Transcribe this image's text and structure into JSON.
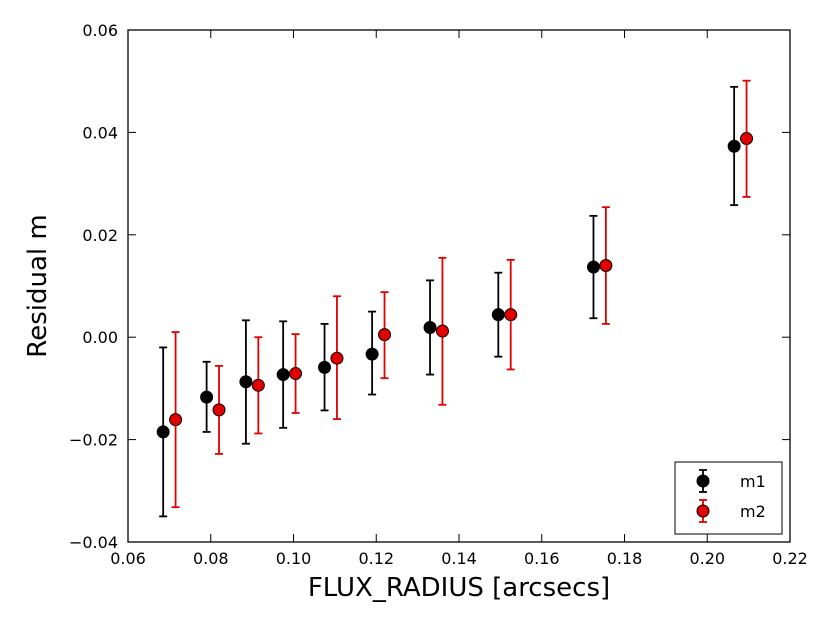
{
  "chart_data": {
    "type": "scatter",
    "xlabel": "FLUX_RADIUS [arcsecs]",
    "ylabel": "Residual m",
    "xlim": [
      0.06,
      0.22
    ],
    "ylim": [
      -0.04,
      0.06
    ],
    "xticks": [
      0.06,
      0.08,
      0.1,
      0.12,
      0.14,
      0.16,
      0.18,
      0.2,
      0.22
    ],
    "xtick_labels": [
      "0.06",
      "0.08",
      "0.10",
      "0.12",
      "0.14",
      "0.16",
      "0.18",
      "0.20",
      "0.22"
    ],
    "yticks": [
      -0.04,
      -0.02,
      0.0,
      0.02,
      0.04,
      0.06
    ],
    "ytick_labels": [
      "−0.04",
      "−0.02",
      "0.00",
      "0.02",
      "0.04",
      "0.06"
    ],
    "grid": false,
    "legend_position": "bottom-right",
    "series": [
      {
        "name": "m1",
        "color": "#000000",
        "points": [
          {
            "x": 0.0685,
            "y": -0.0185,
            "lo": -0.035,
            "hi": -0.002
          },
          {
            "x": 0.079,
            "y": -0.0117,
            "lo": -0.0185,
            "hi": -0.0048
          },
          {
            "x": 0.0885,
            "y": -0.0087,
            "lo": -0.0208,
            "hi": 0.0033
          },
          {
            "x": 0.0975,
            "y": -0.0073,
            "lo": -0.0177,
            "hi": 0.0031
          },
          {
            "x": 0.1075,
            "y": -0.0059,
            "lo": -0.0143,
            "hi": 0.0026
          },
          {
            "x": 0.119,
            "y": -0.0033,
            "lo": -0.0112,
            "hi": 0.005
          },
          {
            "x": 0.133,
            "y": 0.0019,
            "lo": -0.0073,
            "hi": 0.0111
          },
          {
            "x": 0.1495,
            "y": 0.0044,
            "lo": -0.0038,
            "hi": 0.0126
          },
          {
            "x": 0.1725,
            "y": 0.0137,
            "lo": 0.0037,
            "hi": 0.0237
          },
          {
            "x": 0.2065,
            "y": 0.0373,
            "lo": 0.0258,
            "hi": 0.0489
          }
        ]
      },
      {
        "name": "m2",
        "color": "#e00000",
        "points": [
          {
            "x": 0.0715,
            "y": -0.0161,
            "lo": -0.0332,
            "hi": 0.001
          },
          {
            "x": 0.082,
            "y": -0.0142,
            "lo": -0.0228,
            "hi": -0.0056
          },
          {
            "x": 0.0915,
            "y": -0.0094,
            "lo": -0.0188,
            "hi": 0.0
          },
          {
            "x": 0.1005,
            "y": -0.0071,
            "lo": -0.0148,
            "hi": 0.0006
          },
          {
            "x": 0.1105,
            "y": -0.0041,
            "lo": -0.016,
            "hi": 0.008
          },
          {
            "x": 0.122,
            "y": 0.0005,
            "lo": -0.008,
            "hi": 0.0088
          },
          {
            "x": 0.136,
            "y": 0.0012,
            "lo": -0.0132,
            "hi": 0.0155
          },
          {
            "x": 0.1525,
            "y": 0.0044,
            "lo": -0.0063,
            "hi": 0.0151
          },
          {
            "x": 0.1755,
            "y": 0.014,
            "lo": 0.0026,
            "hi": 0.0254
          },
          {
            "x": 0.2095,
            "y": 0.0388,
            "lo": 0.0274,
            "hi": 0.0501
          }
        ]
      }
    ]
  }
}
